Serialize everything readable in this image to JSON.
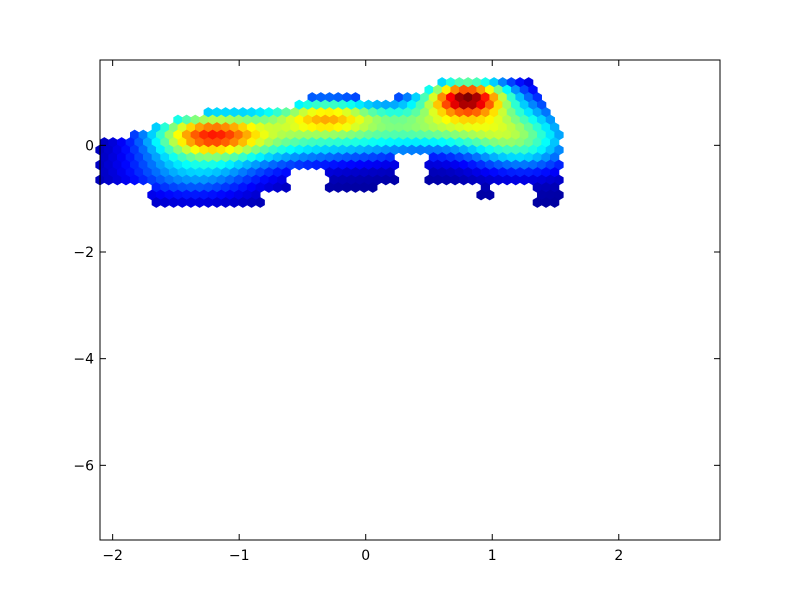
{
  "chart_data": {
    "type": "heatmap",
    "subtype": "hexbin",
    "title": "",
    "xlabel": "",
    "ylabel": "",
    "xlim": [
      -2.1,
      2.8
    ],
    "ylim": [
      -7.4,
      1.6
    ],
    "x_ticks": [
      -2,
      -1,
      0,
      1,
      2
    ],
    "y_ticks": [
      0,
      -2,
      -4,
      -6
    ],
    "x_tick_labels": [
      "−2",
      "−1",
      "0",
      "1",
      "2"
    ],
    "y_tick_labels": [
      "0",
      "−2",
      "−4",
      "−6"
    ],
    "colormap": "jet",
    "colormap_colors": [
      "#00007f",
      "#0000ff",
      "#007fff",
      "#00ffff",
      "#7fff7f",
      "#ffff00",
      "#ff7f00",
      "#ff0000",
      "#7f0000"
    ],
    "grid": false,
    "density_peaks": [
      {
        "x": -1.25,
        "y": 0.2,
        "relative_density": 0.88
      },
      {
        "x": -0.3,
        "y": 0.55,
        "relative_density": 0.55
      },
      {
        "x": 0.8,
        "y": 0.9,
        "relative_density": 1.0
      }
    ],
    "coverage_region": {
      "x_range": [
        -1.95,
        1.55
      ],
      "y_range": [
        -1.2,
        1.35
      ]
    }
  }
}
